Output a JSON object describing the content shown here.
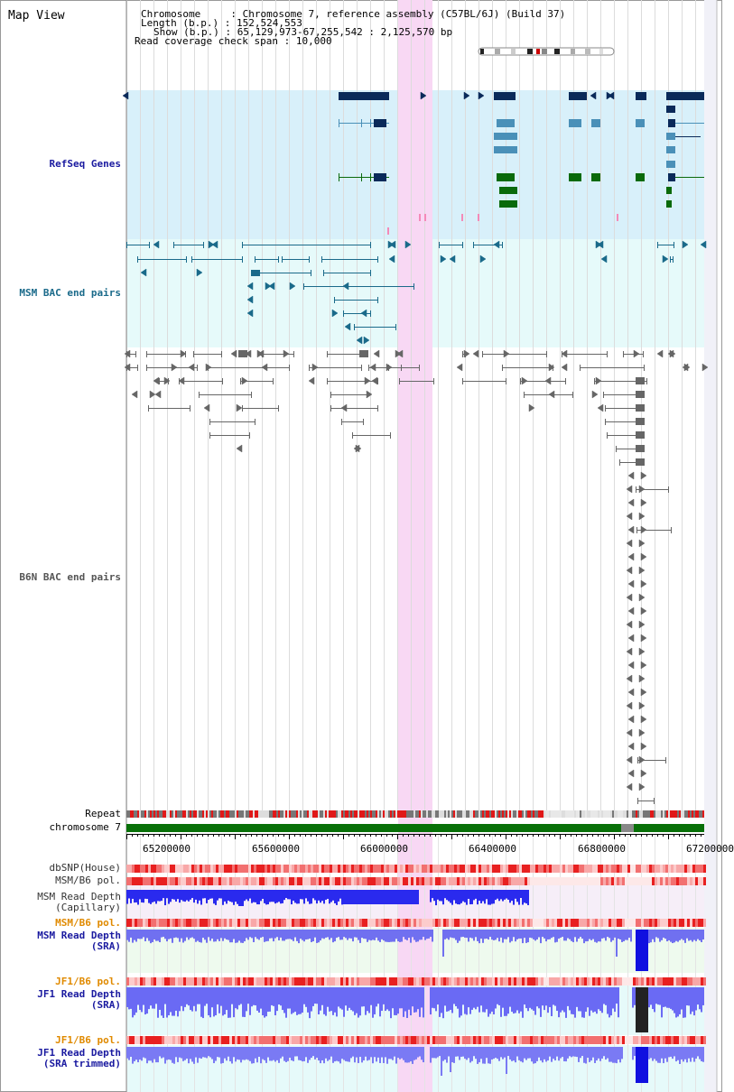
{
  "page": {
    "title": "Map View"
  },
  "info": {
    "chromosome_label": "Chromosome",
    "chromosome_value": "Chromosome 7, reference assembly (C57BL/6J) (Build 37)",
    "length_label": "Length (b.p.)",
    "length_value": "152,524,553",
    "show_label": "Show (b.p.)",
    "show_value": "65,129,973-67,255,542 : 2,125,570 bp",
    "coverage_label": "Read coverage check span",
    "coverage_value": "10,000"
  },
  "tracks": {
    "refseq": {
      "label": "RefSeq Genes",
      "color": "#1a1aa0",
      "bg": "#d8f0fa"
    },
    "msm_bac": {
      "label": "MSM BAC end pairs",
      "color": "#1a6a8a",
      "bg": "#e6fafa"
    },
    "b6n_bac": {
      "label": "B6N BAC end pairs",
      "color": "#555555"
    },
    "repeat": {
      "label": "Repeat"
    },
    "chromosome": {
      "label": "chromosome 7"
    },
    "dbsnp": {
      "label": "dbSNP(House)"
    },
    "msm_pol1": {
      "label": "MSM/B6 pol."
    },
    "msm_depth_cap": {
      "label": "MSM Read Depth\n(Capillary)"
    },
    "msm_pol2": {
      "label": "MSM/B6 pol.",
      "color": "#e08a00"
    },
    "msm_depth_sra": {
      "label": "MSM Read Depth\n(SRA)",
      "color": "#1a1aa0"
    },
    "jf1_pol1": {
      "label": "JF1/B6 pol.",
      "color": "#e08a00"
    },
    "jf1_depth_sra": {
      "label": "JF1 Read Depth\n(SRA)",
      "color": "#1a1aa0"
    },
    "jf1_pol2": {
      "label": "JF1/B6 pol.",
      "color": "#e08a00"
    },
    "jf1_depth_trim": {
      "label": "JF1 Read Depth\n(SRA trimmed)",
      "color": "#1a1aa0"
    }
  },
  "axis": {
    "ticks": [
      "65200000",
      "65600000",
      "66000000",
      "66400000",
      "66800000",
      "67200000"
    ]
  },
  "colors": {
    "refseq_dark": "#0a2a5a",
    "refseq_mid": "#4a90b8",
    "refseq_green": "#0a6a0a",
    "highlight": "#f8d8f4",
    "chrom_green": "#087008",
    "depth_blue": "#2a2aee",
    "snp_red": "#ee3030"
  }
}
